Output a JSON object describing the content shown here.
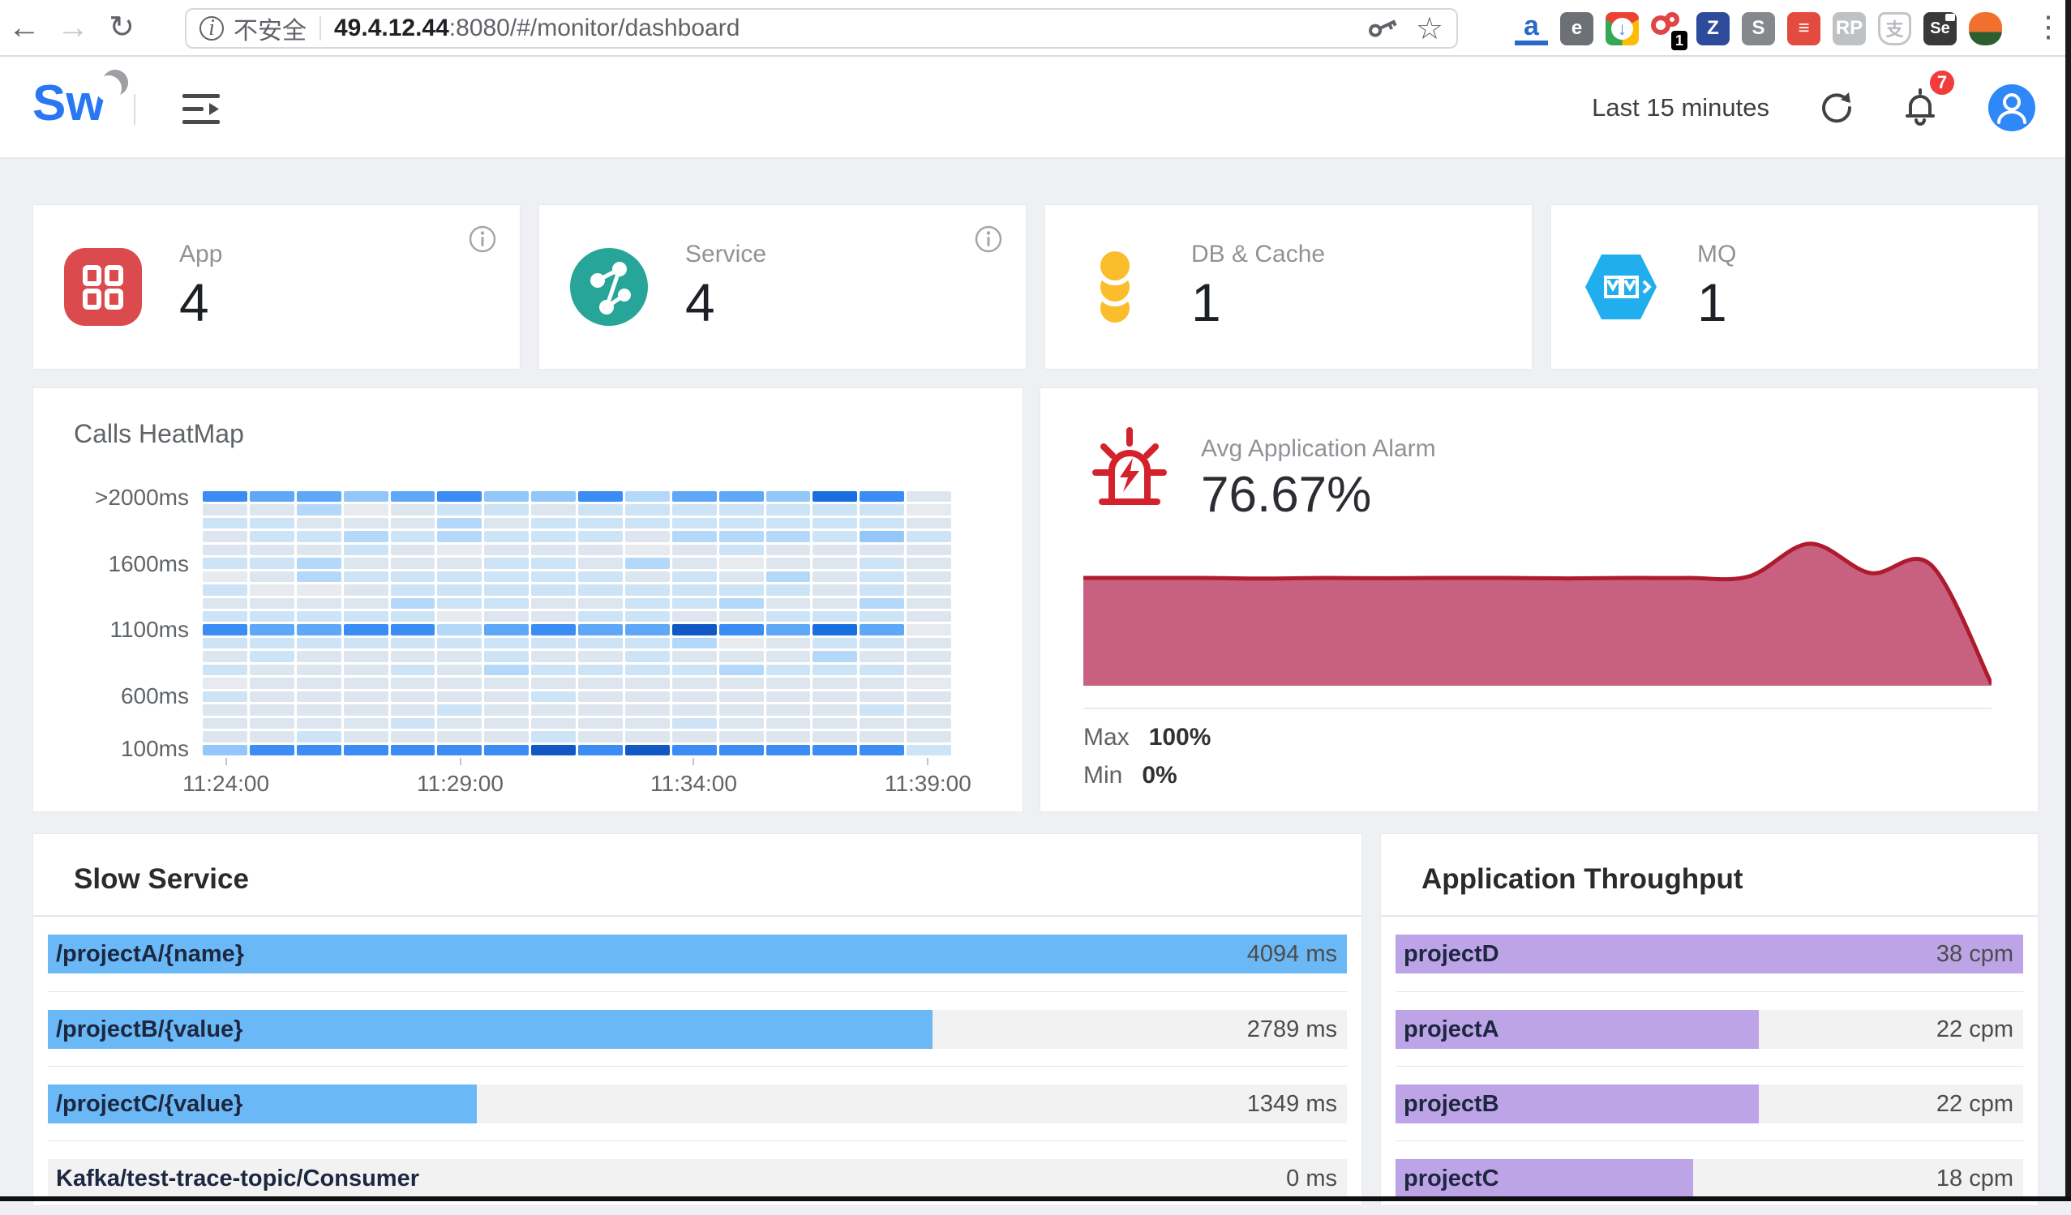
{
  "browser": {
    "back": "←",
    "forward": "→",
    "reload": "↻",
    "menu": "⋮",
    "security_label": "不安全",
    "host": "49.4.12.44",
    "path": ":8080/#/monitor/dashboard",
    "extensions": [
      {
        "name": "amazon-assistant",
        "type": "amazon",
        "label": "a",
        "bg": "",
        "fg": "#2a69c9"
      },
      {
        "name": "evernote",
        "type": "plain",
        "label": "e",
        "bg": "#6d7176",
        "fg": "#ffffff"
      },
      {
        "name": "download-manager",
        "type": "download",
        "label": "↓",
        "bg": "",
        "fg": "#4285f4"
      },
      {
        "name": "notifier",
        "type": "notifier",
        "label": "1",
        "bg": "#000000",
        "fg": "#ffffff"
      },
      {
        "name": "zotero",
        "type": "plain",
        "label": "Z",
        "bg": "#2e4b9b",
        "fg": "#ffffff"
      },
      {
        "name": "s-extension",
        "type": "plain",
        "label": "S",
        "bg": "#85898d",
        "fg": "#ffffff"
      },
      {
        "name": "todoist",
        "type": "plain",
        "label": "≡",
        "bg": "#e44b3f",
        "fg": "#ffffff"
      },
      {
        "name": "roboform",
        "type": "plain",
        "label": "RP",
        "bg": "#bfc2c5",
        "fg": "#ffffff"
      },
      {
        "name": "alipay",
        "type": "alipay",
        "label": "支",
        "bg": "",
        "fg": "#b6b9bd"
      },
      {
        "name": "selenium-ide",
        "type": "se",
        "label": "Se",
        "bg": "#39393b",
        "fg": "#ffffff"
      },
      {
        "name": "parrot",
        "type": "parrot",
        "label": "",
        "bg": "",
        "fg": ""
      }
    ]
  },
  "header": {
    "logo": "Sw",
    "time_range": "Last 15 minutes",
    "notifications": "7"
  },
  "cards": [
    {
      "label": "App",
      "value": "4",
      "icon": "app-grid",
      "color": "#db4a4c",
      "has_info": true
    },
    {
      "label": "Service",
      "value": "4",
      "icon": "service-graph",
      "color": "#27a598",
      "has_info": true
    },
    {
      "label": "DB & Cache",
      "value": "1",
      "icon": "database",
      "color": "#fbbd2c",
      "has_info": false
    },
    {
      "label": "MQ",
      "value": "1",
      "icon": "mq-hexagon",
      "color": "#21aeef",
      "has_info": false
    }
  ],
  "heatmap": {
    "title": "Calls HeatMap",
    "y_labels": [
      ">2000ms",
      "1600ms",
      "1100ms",
      "600ms",
      "100ms"
    ],
    "y_label_rows": [
      0,
      5,
      10,
      15,
      19
    ],
    "x_labels": [
      "11:24:00",
      "11:29:00",
      "11:34:00",
      "11:39:00"
    ],
    "x_label_pcts": [
      3.1,
      34.4,
      65.6,
      96.9
    ],
    "palette": [
      "#e7eaee",
      "#dde6ef",
      "#cde3f6",
      "#b4d8fa",
      "#93c7f9",
      "#5fa8f7",
      "#3b8cf4",
      "#1a6fe0",
      "#1258c4"
    ],
    "matrix": [
      [
        6,
        5,
        5,
        4,
        5,
        6,
        4,
        4,
        6,
        3,
        5,
        5,
        4,
        7,
        6,
        1
      ],
      [
        1,
        1,
        3,
        0,
        1,
        2,
        2,
        1,
        2,
        2,
        2,
        2,
        2,
        2,
        2,
        0
      ],
      [
        2,
        2,
        1,
        1,
        1,
        3,
        1,
        2,
        2,
        2,
        2,
        2,
        2,
        2,
        2,
        1
      ],
      [
        1,
        2,
        2,
        3,
        2,
        3,
        2,
        2,
        2,
        1,
        3,
        3,
        3,
        2,
        4,
        2
      ],
      [
        1,
        1,
        1,
        2,
        1,
        0,
        1,
        1,
        1,
        0,
        1,
        2,
        1,
        1,
        1,
        1
      ],
      [
        2,
        2,
        3,
        1,
        1,
        1,
        2,
        2,
        1,
        3,
        1,
        0,
        1,
        1,
        2,
        1
      ],
      [
        0,
        1,
        3,
        2,
        2,
        2,
        2,
        2,
        2,
        1,
        2,
        1,
        3,
        1,
        2,
        1
      ],
      [
        2,
        0,
        0,
        1,
        2,
        2,
        2,
        2,
        2,
        2,
        2,
        2,
        2,
        1,
        2,
        1
      ],
      [
        1,
        1,
        1,
        1,
        3,
        2,
        2,
        1,
        1,
        2,
        2,
        3,
        1,
        1,
        3,
        1
      ],
      [
        2,
        2,
        2,
        2,
        2,
        0,
        1,
        1,
        2,
        2,
        1,
        1,
        2,
        2,
        2,
        1
      ],
      [
        6,
        5,
        5,
        6,
        6,
        3,
        5,
        6,
        5,
        5,
        8,
        6,
        5,
        7,
        5,
        0
      ],
      [
        2,
        2,
        2,
        2,
        2,
        2,
        2,
        2,
        2,
        2,
        3,
        0,
        1,
        2,
        2,
        1
      ],
      [
        1,
        2,
        1,
        1,
        1,
        1,
        2,
        1,
        1,
        2,
        1,
        1,
        1,
        3,
        1,
        1
      ],
      [
        2,
        1,
        1,
        1,
        2,
        1,
        3,
        2,
        2,
        2,
        2,
        3,
        2,
        2,
        2,
        1
      ],
      [
        0,
        1,
        1,
        1,
        1,
        1,
        1,
        1,
        1,
        1,
        1,
        1,
        1,
        1,
        1,
        0
      ],
      [
        2,
        1,
        1,
        1,
        1,
        1,
        1,
        2,
        1,
        1,
        1,
        1,
        1,
        1,
        1,
        1
      ],
      [
        1,
        1,
        1,
        1,
        1,
        2,
        1,
        1,
        1,
        1,
        1,
        1,
        1,
        1,
        2,
        1
      ],
      [
        1,
        1,
        1,
        1,
        2,
        1,
        1,
        1,
        1,
        1,
        2,
        1,
        1,
        1,
        1,
        1
      ],
      [
        1,
        1,
        2,
        1,
        1,
        1,
        1,
        2,
        1,
        1,
        1,
        1,
        1,
        1,
        1,
        1
      ],
      [
        4,
        6,
        6,
        6,
        6,
        6,
        6,
        8,
        6,
        8,
        6,
        6,
        6,
        6,
        6,
        2
      ]
    ]
  },
  "alarm": {
    "title": "Avg Application Alarm",
    "value": "76.67%",
    "max_label": "Max",
    "max_value": "100%",
    "min_label": "Min",
    "min_value": "0%",
    "fill": "#c8607f",
    "stroke": "#ad1b2d",
    "series": [
      65,
      65,
      65,
      64.6,
      65,
      64.8,
      65,
      65,
      64.7,
      65,
      65,
      66,
      86,
      68,
      73,
      0
    ]
  },
  "slow_service": {
    "title": "Slow Service",
    "bar_color": "#6bb8f6",
    "items": [
      {
        "name": "/projectA/{name}",
        "value": 4094,
        "display": "4094 ms"
      },
      {
        "name": "/projectB/{value}",
        "value": 2789,
        "display": "2789 ms"
      },
      {
        "name": "/projectC/{value}",
        "value": 1349,
        "display": "1349 ms"
      },
      {
        "name": "Kafka/test-trace-topic/Consumer",
        "value": 0,
        "display": "0 ms"
      }
    ]
  },
  "throughput": {
    "title": "Application Throughput",
    "bar_color": "#bda4e7",
    "items": [
      {
        "name": "projectD",
        "value": 38,
        "display": "38 cpm"
      },
      {
        "name": "projectA",
        "value": 22,
        "display": "22 cpm"
      },
      {
        "name": "projectB",
        "value": 22,
        "display": "22 cpm"
      },
      {
        "name": "projectC",
        "value": 18,
        "display": "18 cpm"
      }
    ]
  }
}
